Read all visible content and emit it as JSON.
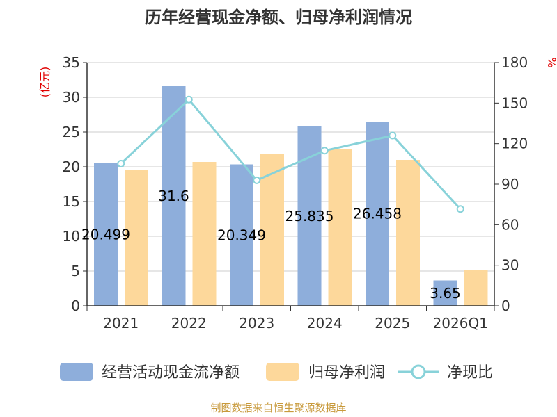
{
  "chart_data": {
    "type": "bar",
    "title": "历年经营现金净额、归母净利润情况",
    "categories": [
      "2021",
      "2022",
      "2023",
      "2024",
      "2025",
      "2026Q1"
    ],
    "y_left": {
      "unit": "(亿元)",
      "ylim": [
        0,
        35
      ],
      "ticks": [
        "0",
        "5",
        "10",
        "15",
        "20",
        "25",
        "30",
        "35"
      ]
    },
    "y_right": {
      "unit": "%",
      "ylim": [
        0,
        180
      ],
      "ticks": [
        "0",
        "30",
        "60",
        "90",
        "120",
        "150",
        "180"
      ]
    },
    "series": [
      {
        "name": "经营活动现金流净额",
        "type": "bar",
        "axis": "left",
        "color": "#8eaedb",
        "values": [
          20.499,
          31.6,
          20.349,
          25.835,
          26.458,
          3.65
        ],
        "labels": [
          "20.499",
          "31.6",
          "20.349",
          "25.835",
          "26.458",
          "3.65"
        ]
      },
      {
        "name": "归母净利润",
        "type": "bar",
        "axis": "left",
        "color": "#fdd89b",
        "values": [
          19.5,
          20.7,
          21.9,
          22.5,
          21.0,
          5.1
        ]
      },
      {
        "name": "净现比",
        "type": "line",
        "axis": "right",
        "color": "#88d2d9",
        "values": [
          105.2,
          152.6,
          92.9,
          114.8,
          126.0,
          71.6
        ]
      }
    ],
    "grid": true,
    "legend": "bottom"
  },
  "source_text": "制图数据来自恒生聚源数据库"
}
